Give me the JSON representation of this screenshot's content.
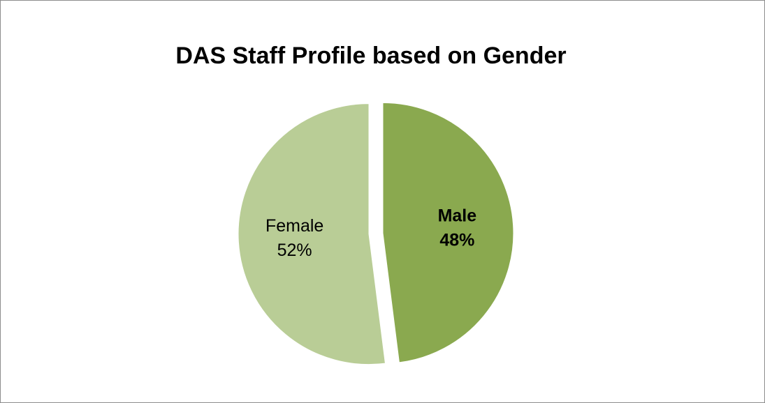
{
  "chart_data": {
    "type": "pie",
    "title": "DAS Staff Profile based on Gender",
    "categories": [
      "Male",
      "Female"
    ],
    "values": [
      48,
      52
    ],
    "value_labels": [
      "48%",
      "52%"
    ],
    "colors": [
      "#8aa94f",
      "#b9cd96"
    ],
    "label_bold": [
      true,
      false
    ],
    "start_angle": 0,
    "direction": "clockwise",
    "exploded": true
  }
}
